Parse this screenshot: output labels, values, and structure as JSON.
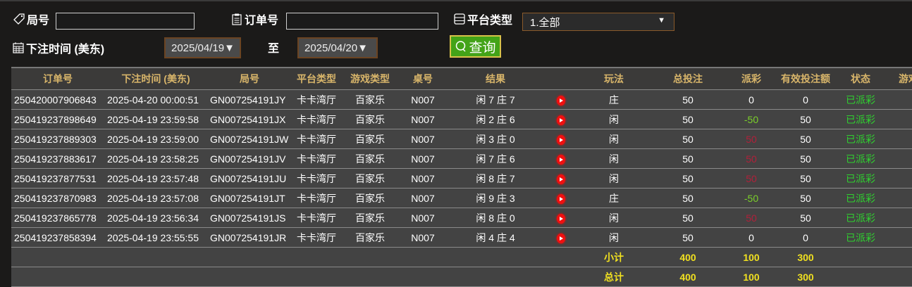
{
  "filters": {
    "round_label": "局号",
    "round_value": "",
    "order_label": "订单号",
    "order_value": "",
    "platform_label": "平台类型",
    "platform_value": "1.全部",
    "time_label": "下注时间 (美东)",
    "date_from": "2025/04/19▼",
    "to_label": "至",
    "date_to": "2025/04/20▼",
    "search_label": "查询"
  },
  "table": {
    "headers": [
      "订单号",
      "下注时间 (美东)",
      "局号",
      "平台类型",
      "游戏类型",
      "桌号",
      "结果",
      "",
      "玩法",
      "总投注",
      "派彩",
      "有效投注额",
      "状态",
      "游戏"
    ],
    "rows": [
      {
        "order": "250420007906843",
        "time": "2025-04-20 00:00:51",
        "round": "GN007254191JY",
        "platform": "卡卡湾厅",
        "game": "百家乐",
        "table": "N007",
        "result": "闲 7 庄 7",
        "play": "庄",
        "bet": "50",
        "payout": "0",
        "payout_color": "white",
        "valid": "0",
        "status": "已派彩"
      },
      {
        "order": "250419237898649",
        "time": "2025-04-19 23:59:58",
        "round": "GN007254191JX",
        "platform": "卡卡湾厅",
        "game": "百家乐",
        "table": "N007",
        "result": "闲 2 庄 6",
        "play": "闲",
        "bet": "50",
        "payout": "-50",
        "payout_color": "lime",
        "valid": "50",
        "status": "已派彩"
      },
      {
        "order": "250419237889303",
        "time": "2025-04-19 23:59:00",
        "round": "GN007254191JW",
        "platform": "卡卡湾厅",
        "game": "百家乐",
        "table": "N007",
        "result": "闲 3 庄 0",
        "play": "闲",
        "bet": "50",
        "payout": "50",
        "payout_color": "red",
        "valid": "50",
        "status": "已派彩"
      },
      {
        "order": "250419237883617",
        "time": "2025-04-19 23:58:25",
        "round": "GN007254191JV",
        "platform": "卡卡湾厅",
        "game": "百家乐",
        "table": "N007",
        "result": "闲 7 庄 6",
        "play": "闲",
        "bet": "50",
        "payout": "50",
        "payout_color": "red",
        "valid": "50",
        "status": "已派彩"
      },
      {
        "order": "250419237877531",
        "time": "2025-04-19 23:57:48",
        "round": "GN007254191JU",
        "platform": "卡卡湾厅",
        "game": "百家乐",
        "table": "N007",
        "result": "闲 8 庄 7",
        "play": "闲",
        "bet": "50",
        "payout": "50",
        "payout_color": "red",
        "valid": "50",
        "status": "已派彩"
      },
      {
        "order": "250419237870983",
        "time": "2025-04-19 23:57:08",
        "round": "GN007254191JT",
        "platform": "卡卡湾厅",
        "game": "百家乐",
        "table": "N007",
        "result": "闲 9 庄 3",
        "play": "庄",
        "bet": "50",
        "payout": "-50",
        "payout_color": "lime",
        "valid": "50",
        "status": "已派彩"
      },
      {
        "order": "250419237865778",
        "time": "2025-04-19 23:56:34",
        "round": "GN007254191JS",
        "platform": "卡卡湾厅",
        "game": "百家乐",
        "table": "N007",
        "result": "闲 8 庄 0",
        "play": "闲",
        "bet": "50",
        "payout": "50",
        "payout_color": "red",
        "valid": "50",
        "status": "已派彩"
      },
      {
        "order": "250419237858394",
        "time": "2025-04-19 23:55:55",
        "round": "GN007254191JR",
        "platform": "卡卡湾厅",
        "game": "百家乐",
        "table": "N007",
        "result": "闲 4 庄 4",
        "play": "闲",
        "bet": "50",
        "payout": "0",
        "payout_color": "white",
        "valid": "0",
        "status": "已派彩"
      }
    ],
    "subtotal": {
      "label": "小计",
      "bet": "400",
      "payout": "100",
      "valid": "300"
    },
    "total": {
      "label": "总计",
      "bet": "400",
      "payout": "100",
      "valid": "300"
    }
  },
  "colors": {
    "header_text": "#d8b56a",
    "status": "#2fd12f",
    "total": "#f0e020",
    "search_button": "#43a318"
  }
}
